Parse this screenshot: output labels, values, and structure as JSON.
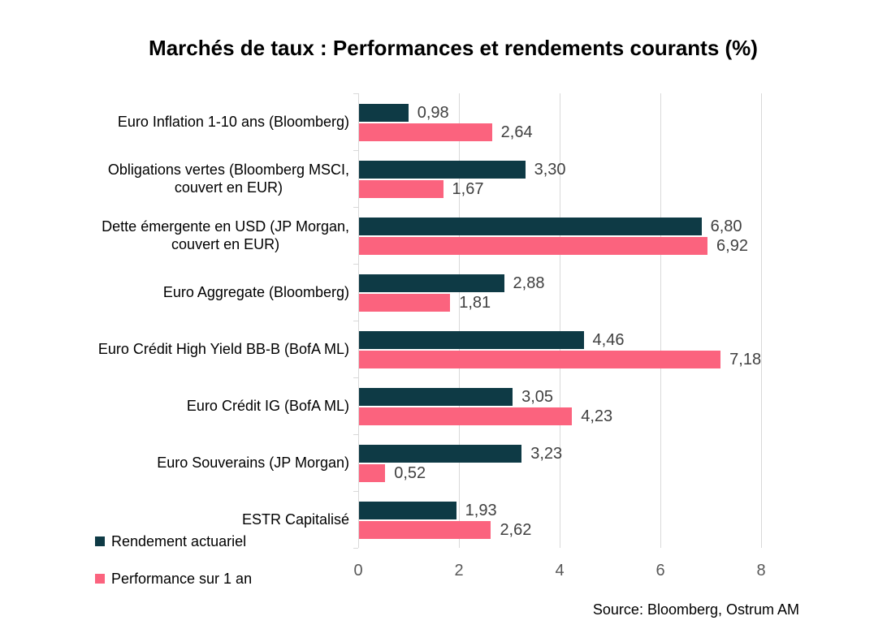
{
  "chart_data": {
    "type": "bar",
    "orientation": "horizontal",
    "title": "Marchés de taux : Performances et rendements courants (%)",
    "source": "Source: Bloomberg, Ostrum AM",
    "categories": [
      "Euro Inflation 1-10 ans (Bloomberg)",
      "Obligations vertes (Bloomberg MSCI,\ncouvert en EUR)",
      "Dette émergente en USD (JP Morgan,\ncouvert en EUR)",
      "Euro Aggregate (Bloomberg)",
      "Euro Crédit High Yield BB-B (BofA ML)",
      "Euro Crédit IG (BofA ML)",
      "Euro Souverains (JP Morgan)",
      "ESTR Capitalisé"
    ],
    "series": [
      {
        "name": "Rendement actuariel",
        "color": "#0e3a45",
        "values": [
          0.98,
          3.3,
          6.8,
          2.88,
          4.46,
          3.05,
          3.23,
          1.93
        ],
        "value_labels": [
          "0,98",
          "3,30",
          "6,80",
          "2,88",
          "4,46",
          "3,05",
          "3,23",
          "1,93"
        ]
      },
      {
        "name": "Performance sur 1 an",
        "color": "#fb637e",
        "values": [
          2.64,
          1.67,
          6.92,
          1.81,
          7.18,
          4.23,
          0.52,
          2.62
        ],
        "value_labels": [
          "2,64",
          "1,67",
          "6,92",
          "1,81",
          "7,18",
          "4,23",
          "0,52",
          "2,62"
        ]
      }
    ],
    "x_axis": {
      "tick_labels": [
        "0",
        "2",
        "4",
        "6",
        "8"
      ],
      "tick_values": [
        0,
        2,
        4,
        6,
        8
      ],
      "min": 0,
      "max": 8
    },
    "grid": true,
    "legend_position": "bottom-left",
    "colors": {
      "gridline": "#d9d9d9",
      "axis_line": "#d9d9d9",
      "axis_label": "#595959",
      "value_label": "#404040",
      "category_label": "#000000",
      "background": "#ffffff"
    }
  }
}
